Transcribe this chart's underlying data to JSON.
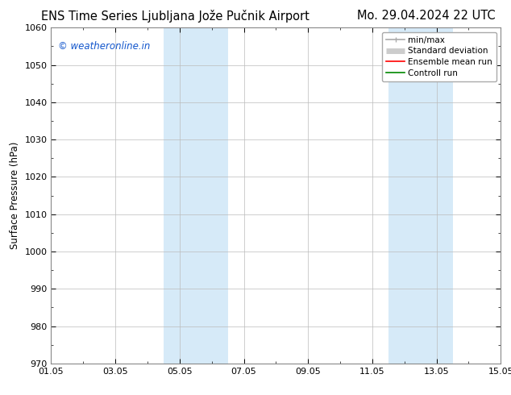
{
  "title_left": "ENS Time Series Ljubljana Jože Pučnik Airport",
  "title_right": "Mo. 29.04.2024 22 UTC",
  "ylabel": "Surface Pressure (hPa)",
  "watermark": "© weatheronline.in",
  "watermark_color": "#1155cc",
  "ylim": [
    970,
    1060
  ],
  "ytick_interval": 10,
  "xtick_labels": [
    "01.05",
    "03.05",
    "05.05",
    "07.05",
    "09.05",
    "11.05",
    "13.05",
    "15.05"
  ],
  "xtick_positions_days": [
    0,
    2,
    4,
    6,
    8,
    10,
    12,
    14
  ],
  "xlim": [
    0,
    14
  ],
  "shaded_bands": [
    {
      "x0_days": 3.5,
      "x1_days": 5.5
    },
    {
      "x0_days": 10.5,
      "x1_days": 12.5
    }
  ],
  "shade_color": "#d6eaf8",
  "shade_alpha": 1.0,
  "bg_color": "#ffffff",
  "grid_color": "#bbbbbb",
  "legend_entries": [
    {
      "label": "min/max",
      "color": "#aaaaaa",
      "lw": 1.2
    },
    {
      "label": "Standard deviation",
      "color": "#cccccc",
      "lw": 5
    },
    {
      "label": "Ensemble mean run",
      "color": "#ff0000",
      "lw": 1.2
    },
    {
      "label": "Controll run",
      "color": "#008800",
      "lw": 1.2
    }
  ],
  "title_fontsize": 10.5,
  "axis_fontsize": 8.5,
  "tick_fontsize": 8,
  "watermark_fontsize": 8.5,
  "legend_fontsize": 7.5
}
